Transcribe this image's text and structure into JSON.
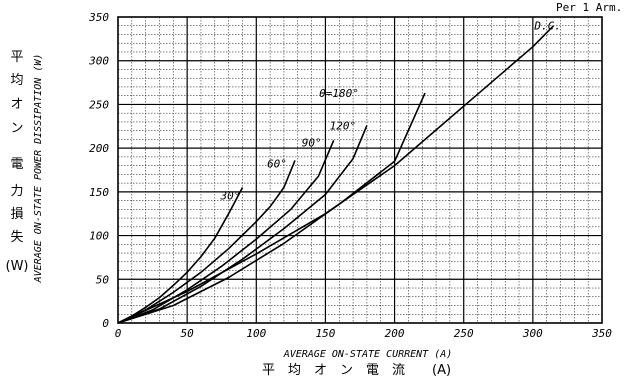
{
  "chart_data": {
    "type": "line",
    "annotation": "Per 1 Arm.",
    "xlabel": "AVERAGE ON-STATE CURRENT (A)",
    "xlabel_jp": [
      "平",
      "均",
      "オ",
      "ン",
      "電",
      "流",
      "(A)"
    ],
    "ylabel": "AVERAGE ON-STATE POWER DISSIPATION (W)",
    "ylabel_jp": [
      "平",
      "均",
      "オ",
      "ン",
      "電",
      "力",
      "損",
      "失",
      "(W)"
    ],
    "xlim": [
      0,
      350
    ],
    "ylim": [
      0,
      350
    ],
    "xticks": [
      "0",
      "50",
      "100",
      "150",
      "200",
      "250",
      "300",
      "350"
    ],
    "yticks": [
      "0",
      "50",
      "100",
      "150",
      "200",
      "250",
      "300",
      "350"
    ],
    "grid": true,
    "series": [
      {
        "name": "30°",
        "x": [
          0,
          10,
          20,
          30,
          40,
          50,
          60,
          70,
          80,
          90
        ],
        "y": [
          0,
          8,
          18,
          29,
          43,
          58,
          76,
          97,
          125,
          155
        ]
      },
      {
        "name": "60°",
        "x": [
          0,
          20,
          40,
          60,
          80,
          100,
          110,
          120,
          128
        ],
        "y": [
          0,
          15,
          35,
          58,
          85,
          116,
          133,
          155,
          186
        ]
      },
      {
        "name": "90°",
        "x": [
          0,
          25,
          50,
          75,
          100,
          125,
          145,
          156
        ],
        "y": [
          0,
          15,
          38,
          65,
          96,
          130,
          168,
          209
        ]
      },
      {
        "name": "120°",
        "x": [
          0,
          30,
          60,
          90,
          120,
          150,
          170,
          180
        ],
        "y": [
          0,
          16,
          42,
          73,
          108,
          147,
          188,
          226
        ]
      },
      {
        "name": "θ=180°",
        "x": [
          0,
          40,
          80,
          120,
          160,
          200,
          222
        ],
        "y": [
          0,
          20,
          52,
          91,
          136,
          185,
          263
        ]
      },
      {
        "name": "D.C.",
        "x": [
          0,
          50,
          100,
          150,
          200,
          250,
          300,
          315
        ],
        "y": [
          0,
          36,
          79,
          125,
          180,
          248,
          316,
          340
        ]
      }
    ],
    "series_labels": [
      "30°",
      "60°",
      "90°",
      "120°",
      "θ=180°",
      "D.C."
    ]
  }
}
